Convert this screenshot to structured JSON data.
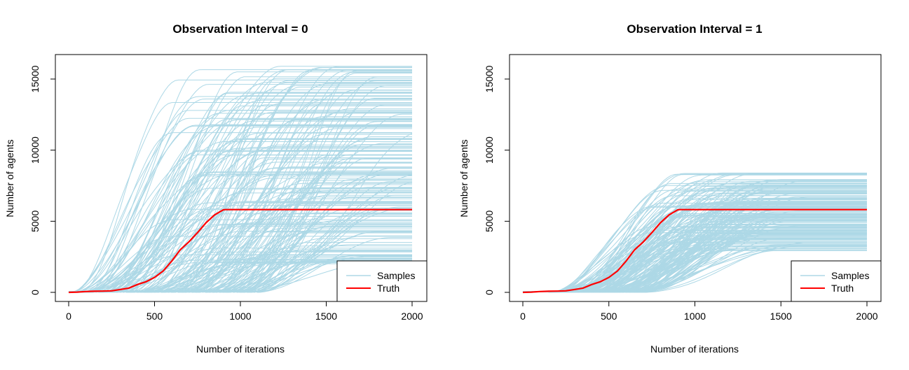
{
  "colors": {
    "samples": "#add8e6",
    "truth": "#ff0000"
  },
  "chart_data": [
    {
      "type": "line",
      "title": "Observation Interval = 0",
      "xlabel": "Number of iterations",
      "ylabel": "Number of agents",
      "xlim": [
        0,
        2000
      ],
      "ylim": [
        0,
        16000
      ],
      "xticks": [
        "0",
        "500",
        "1000",
        "1500",
        "2000"
      ],
      "yticks": [
        "0",
        "5000",
        "10000",
        "15000"
      ],
      "legend": {
        "position": "bottom-right",
        "entries": [
          "Samples",
          "Truth"
        ]
      },
      "truth": {
        "name": "Truth",
        "x": [
          0,
          50,
          100,
          150,
          200,
          250,
          300,
          350,
          400,
          450,
          500,
          550,
          600,
          650,
          700,
          750,
          800,
          850,
          900,
          910,
          1000,
          1500,
          2000
        ],
        "y": [
          0,
          20,
          60,
          80,
          90,
          110,
          200,
          300,
          550,
          750,
          1050,
          1500,
          2200,
          3000,
          3550,
          4200,
          4900,
          5450,
          5800,
          5820,
          5820,
          5820,
          5820
        ]
      },
      "samples": {
        "name": "Samples",
        "count": 220,
        "start_range": [
          0,
          1100
        ],
        "plateau_range": [
          2000,
          16000
        ]
      }
    },
    {
      "type": "line",
      "title": "Observation Interval = 1",
      "xlabel": "Number of iterations",
      "ylabel": "Number of agents",
      "xlim": [
        0,
        2000
      ],
      "ylim": [
        0,
        16000
      ],
      "xticks": [
        "0",
        "500",
        "1000",
        "1500",
        "2000"
      ],
      "yticks": [
        "0",
        "5000",
        "10000",
        "15000"
      ],
      "legend": {
        "position": "bottom-right",
        "entries": [
          "Samples",
          "Truth"
        ]
      },
      "truth": {
        "name": "Truth",
        "x": [
          0,
          50,
          100,
          150,
          200,
          250,
          300,
          350,
          400,
          450,
          500,
          550,
          600,
          650,
          700,
          750,
          800,
          850,
          900,
          910,
          1000,
          1500,
          2000
        ],
        "y": [
          0,
          20,
          60,
          80,
          90,
          110,
          200,
          300,
          550,
          750,
          1050,
          1500,
          2200,
          3000,
          3550,
          4200,
          4900,
          5450,
          5800,
          5820,
          5820,
          5820,
          5820
        ]
      },
      "samples": {
        "name": "Samples",
        "count": 200,
        "start_range": [
          150,
          700
        ],
        "plateau_range": [
          2900,
          8400
        ]
      }
    }
  ]
}
